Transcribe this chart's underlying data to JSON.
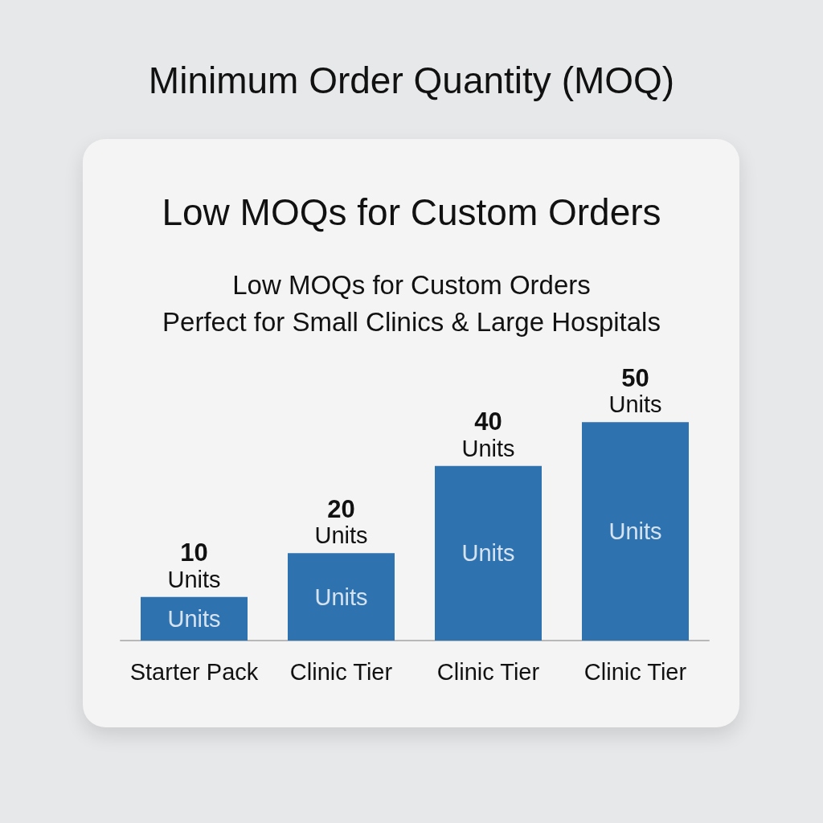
{
  "chart_data": {
    "type": "bar",
    "title": "Minimum Order Quantity (MOQ)",
    "subtitle": "Low MOQs for Custom Orders",
    "annotations": [
      "Low MOQs for Custom Orders\nPerfect for Small Clinics & Large Hospitals",
      "Units",
      "Units",
      "Units",
      "Units"
    ],
    "categories": [
      "Starter Pack",
      "Clinic Tier",
      "Clinic Tier",
      "Clinic Tier"
    ],
    "values": [
      10,
      20,
      40,
      50
    ],
    "color": "#2f72b0",
    "value_labels": [
      "10 Units",
      "20 Units",
      "40 Units",
      "50 Units"
    ],
    "tick_labels": "x"
  }
}
